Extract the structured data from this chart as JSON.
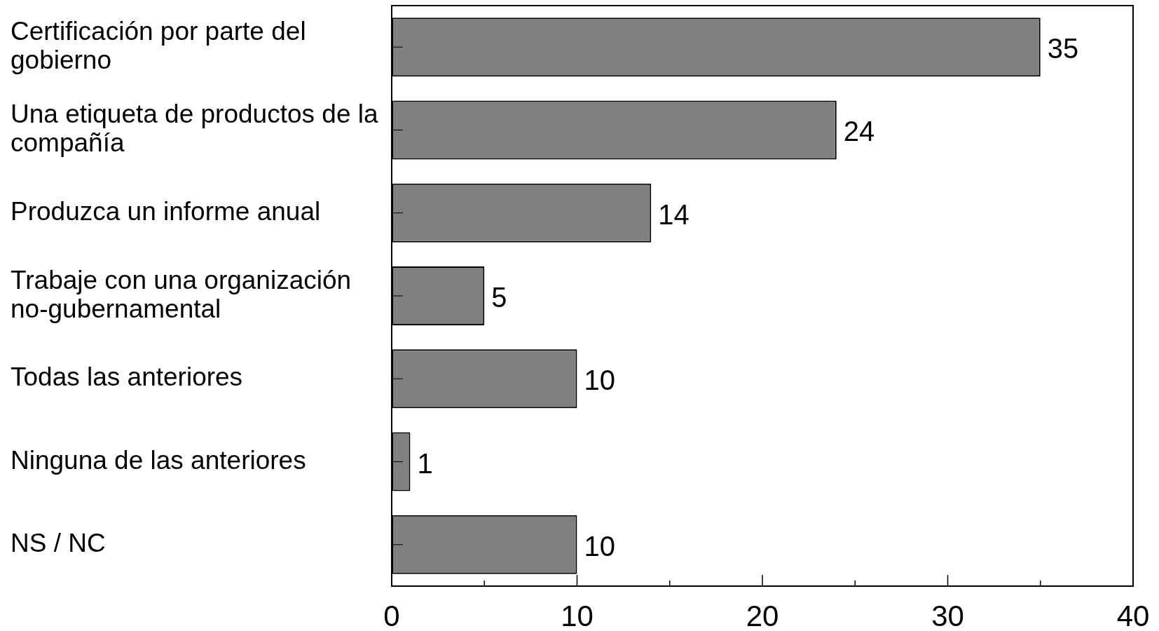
{
  "chart_data": {
    "type": "bar",
    "orientation": "horizontal",
    "categories": [
      "Certificación por parte del gobierno",
      "Una etiqueta de productos de la compañía",
      "Produzca un informe anual",
      "Trabaje con una organización no-gubernamental",
      "Todas las anteriores",
      "Ninguna de las anteriores",
      "NS / NC"
    ],
    "values": [
      35,
      24,
      14,
      5,
      10,
      1,
      10
    ],
    "color": "#808080",
    "xlim": [
      0,
      40
    ],
    "xticks": [
      0,
      {
        "value": 5,
        "label": null
      },
      10,
      {
        "value": 15,
        "label": null
      },
      20,
      {
        "value": 25,
        "label": null
      },
      30,
      {
        "value": 35,
        "label": null
      },
      40
    ],
    "data_labels": true
  }
}
